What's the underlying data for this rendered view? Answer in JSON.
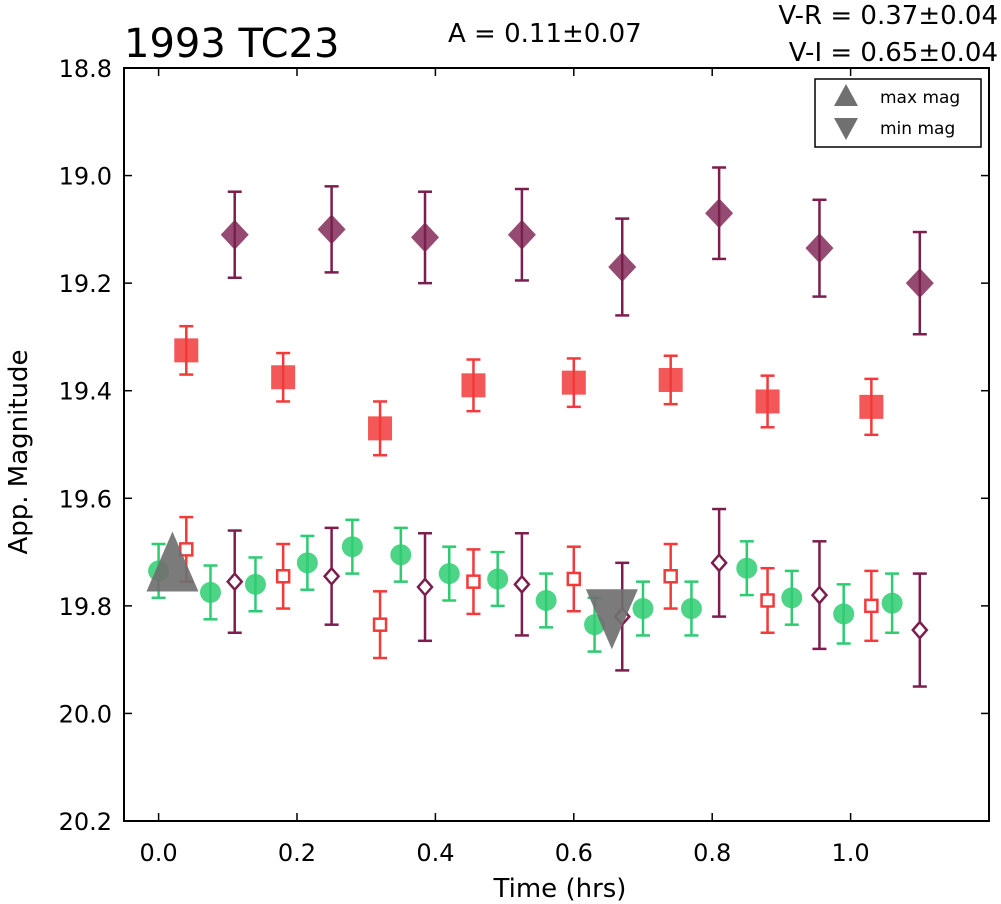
{
  "figure": {
    "title": "1993 TC23",
    "amplitude": "A  = 0.11±0.07",
    "color_vr": "V-R = 0.37±0.04",
    "color_vi": "V-I  = 0.65±0.04"
  },
  "chart_data": {
    "type": "scatter",
    "title": "1993 TC23",
    "xlabel": "Time (hrs)",
    "ylabel": "App. Magnitude",
    "xlim": [
      -0.05,
      1.2
    ],
    "ylim": [
      20.2,
      18.8
    ],
    "y_inverted": true,
    "grid": false,
    "xticks": [
      "0.0",
      "0.2",
      "0.4",
      "0.6",
      "0.8",
      "1.0"
    ],
    "yticks": [
      "18.8",
      "19.0",
      "19.2",
      "19.4",
      "19.6",
      "19.8",
      "20.0",
      "20.2"
    ],
    "legend": {
      "placement": "top-right",
      "entries": [
        "max mag",
        "min mag"
      ]
    },
    "colors": {
      "green": "#2ecc71",
      "red": "#f23a3a",
      "purple": "#7b1e4d",
      "marker_gray": "#707070"
    },
    "series": [
      {
        "marker": "filled-circle",
        "color": "#2ecc71",
        "x": [
          0.0,
          0.075,
          0.14,
          0.215,
          0.28,
          0.35,
          0.42,
          0.49,
          0.56,
          0.63,
          0.7,
          0.77,
          0.85,
          0.915,
          0.99,
          1.06
        ],
        "y": [
          19.735,
          19.775,
          19.76,
          19.72,
          19.69,
          19.705,
          19.74,
          19.75,
          19.79,
          19.835,
          19.805,
          19.805,
          19.73,
          19.785,
          19.815,
          19.795
        ],
        "yerr": [
          0.05,
          0.05,
          0.05,
          0.05,
          0.05,
          0.05,
          0.05,
          0.05,
          0.05,
          0.05,
          0.05,
          0.05,
          0.05,
          0.05,
          0.055,
          0.055
        ]
      },
      {
        "marker": "open-square",
        "color": "#f23a3a",
        "x": [
          0.04,
          0.18,
          0.32,
          0.455,
          0.6,
          0.74,
          0.88,
          1.03
        ],
        "y": [
          19.695,
          19.745,
          19.835,
          19.755,
          19.75,
          19.745,
          19.79,
          19.8
        ],
        "yerr": [
          0.06,
          0.06,
          0.062,
          0.06,
          0.06,
          0.06,
          0.06,
          0.065
        ]
      },
      {
        "marker": "open-diamond",
        "color": "#7b1e4d",
        "x": [
          0.11,
          0.25,
          0.385,
          0.525,
          0.67,
          0.81,
          0.955,
          1.1
        ],
        "y": [
          19.755,
          19.745,
          19.765,
          19.76,
          19.82,
          19.72,
          19.78,
          19.845
        ],
        "yerr": [
          0.095,
          0.09,
          0.1,
          0.095,
          0.1,
          0.1,
          0.1,
          0.105
        ]
      },
      {
        "marker": "filled-square",
        "color": "#f23a3a",
        "x": [
          0.04,
          0.18,
          0.32,
          0.455,
          0.6,
          0.74,
          0.88,
          1.03
        ],
        "y": [
          19.325,
          19.375,
          19.47,
          19.39,
          19.385,
          19.38,
          19.42,
          19.43
        ],
        "yerr": [
          0.045,
          0.045,
          0.05,
          0.048,
          0.045,
          0.045,
          0.048,
          0.052
        ]
      },
      {
        "marker": "filled-diamond",
        "color": "#7b1e4d",
        "x": [
          0.11,
          0.25,
          0.385,
          0.525,
          0.67,
          0.81,
          0.955,
          1.1
        ],
        "y": [
          19.11,
          19.1,
          19.115,
          19.11,
          19.17,
          19.07,
          19.135,
          19.2
        ],
        "yerr": [
          0.08,
          0.08,
          0.085,
          0.085,
          0.09,
          0.085,
          0.09,
          0.095
        ]
      }
    ],
    "extrema": {
      "max_mag": {
        "label": "max mag",
        "x": 0.02,
        "y": 19.725
      },
      "min_mag": {
        "label": "min mag",
        "x": 0.655,
        "y": 19.825
      }
    }
  }
}
